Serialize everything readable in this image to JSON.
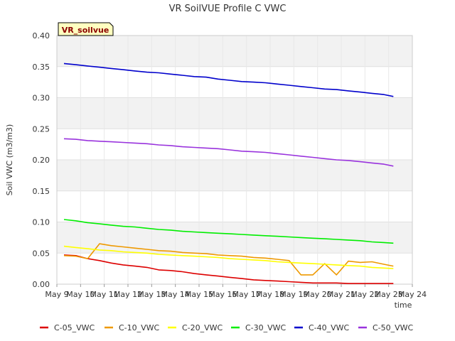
{
  "chart_data": {
    "type": "line",
    "title": "VR SoilVUE Profile C VWC",
    "xlabel": "time",
    "ylabel": "Soil VWC (m3/m3)",
    "badge": "VR_soilvue",
    "xlim": [
      9,
      24
    ],
    "ylim": [
      0,
      0.4
    ],
    "x_ticks": [
      "May 9",
      "May 10",
      "May 11",
      "May 12",
      "May 13",
      "May 14",
      "May 15",
      "May 16",
      "May 17",
      "May 18",
      "May 19",
      "May 20",
      "May 21",
      "May 22",
      "May 23",
      "May 24"
    ],
    "y_ticks": [
      "0.00",
      "0.05",
      "0.10",
      "0.15",
      "0.20",
      "0.25",
      "0.30",
      "0.35",
      "0.40"
    ],
    "grid": true,
    "legend_position": "bottom",
    "x": [
      9.3,
      9.8,
      10.3,
      10.8,
      11.3,
      11.8,
      12.3,
      12.8,
      13.3,
      13.8,
      14.3,
      14.8,
      15.3,
      15.8,
      16.3,
      16.8,
      17.3,
      17.8,
      18.3,
      18.8,
      19.3,
      19.8,
      20.3,
      20.8,
      21.3,
      21.8,
      22.3,
      22.8,
      23.2
    ],
    "series": [
      {
        "name": "C-05_VWC",
        "color": "#dd0000",
        "values": [
          0.047,
          0.046,
          0.041,
          0.038,
          0.034,
          0.031,
          0.029,
          0.027,
          0.023,
          0.022,
          0.02,
          0.017,
          0.015,
          0.013,
          0.011,
          0.009,
          0.007,
          0.006,
          0.005,
          0.004,
          0.003,
          0.002,
          0.002,
          0.002,
          0.001,
          0.001,
          0.001,
          0.001,
          0.001
        ]
      },
      {
        "name": "C-10_VWC",
        "color": "#ee9900",
        "values": [
          0.046,
          0.045,
          0.041,
          0.065,
          0.062,
          0.06,
          0.058,
          0.056,
          0.054,
          0.053,
          0.051,
          0.05,
          0.049,
          0.047,
          0.046,
          0.045,
          0.043,
          0.042,
          0.04,
          0.038,
          0.015,
          0.015,
          0.033,
          0.015,
          0.037,
          0.035,
          0.036,
          0.032,
          0.029
        ]
      },
      {
        "name": "C-20_VWC",
        "color": "#ffff00",
        "values": [
          0.061,
          0.059,
          0.057,
          0.055,
          0.054,
          0.052,
          0.051,
          0.05,
          0.048,
          0.047,
          0.046,
          0.045,
          0.044,
          0.043,
          0.041,
          0.04,
          0.039,
          0.038,
          0.036,
          0.035,
          0.034,
          0.033,
          0.032,
          0.031,
          0.03,
          0.029,
          0.027,
          0.026,
          0.025
        ]
      },
      {
        "name": "C-30_VWC",
        "color": "#00ee00",
        "values": [
          0.104,
          0.102,
          0.099,
          0.097,
          0.095,
          0.093,
          0.092,
          0.09,
          0.088,
          0.087,
          0.085,
          0.084,
          0.083,
          0.082,
          0.081,
          0.08,
          0.079,
          0.078,
          0.077,
          0.076,
          0.075,
          0.074,
          0.073,
          0.072,
          0.071,
          0.07,
          0.068,
          0.067,
          0.066
        ]
      },
      {
        "name": "C-40_VWC",
        "color": "#0000cc",
        "values": [
          0.355,
          0.353,
          0.351,
          0.349,
          0.347,
          0.345,
          0.343,
          0.341,
          0.34,
          0.338,
          0.336,
          0.334,
          0.333,
          0.33,
          0.328,
          0.326,
          0.325,
          0.324,
          0.322,
          0.32,
          0.318,
          0.316,
          0.314,
          0.313,
          0.311,
          0.309,
          0.307,
          0.305,
          0.302
        ]
      },
      {
        "name": "C-50_VWC",
        "color": "#9933dd",
        "values": [
          0.234,
          0.233,
          0.231,
          0.23,
          0.229,
          0.228,
          0.227,
          0.226,
          0.224,
          0.223,
          0.221,
          0.22,
          0.219,
          0.218,
          0.216,
          0.214,
          0.213,
          0.212,
          0.21,
          0.208,
          0.206,
          0.204,
          0.202,
          0.2,
          0.199,
          0.197,
          0.195,
          0.193,
          0.19
        ]
      }
    ]
  }
}
